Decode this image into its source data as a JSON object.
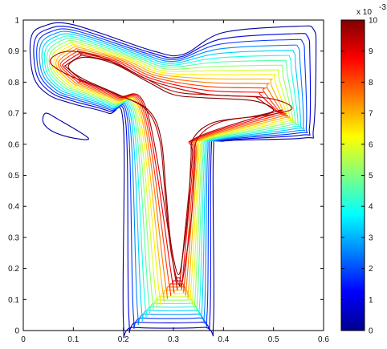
{
  "chart_data": {
    "type": "contour",
    "x_ticks": [
      "0",
      "0.1",
      "0.2",
      "0.3",
      "0.4",
      "0.5",
      "0.6"
    ],
    "y_ticks": [
      "0",
      "0.1",
      "0.2",
      "0.3",
      "0.4",
      "0.5",
      "0.6",
      "0.7",
      "0.8",
      "0.9",
      "1"
    ],
    "xlim": [
      0,
      0.6
    ],
    "ylim": [
      0,
      1
    ],
    "grid": false,
    "colorbar": {
      "ticks": [
        "0",
        "1",
        "2",
        "3",
        "4",
        "5",
        "6",
        "7",
        "8",
        "9",
        "10"
      ],
      "range": [
        0,
        10
      ],
      "exponent_label": "x 10",
      "exponent_power": "-3",
      "colormap": "jet"
    },
    "contour_levels": [
      0.3,
      1,
      1.8,
      2.6,
      3.3,
      4,
      4.6,
      5.2,
      5.8,
      6.4,
      7,
      7.6,
      8.2,
      8.8,
      9.5,
      10
    ],
    "domain": "T-shaped cavity: top bar x 0.02–0.58, y 0.62–0.98; vertical stem x 0.20–0.38, y 0.01–0.62"
  }
}
